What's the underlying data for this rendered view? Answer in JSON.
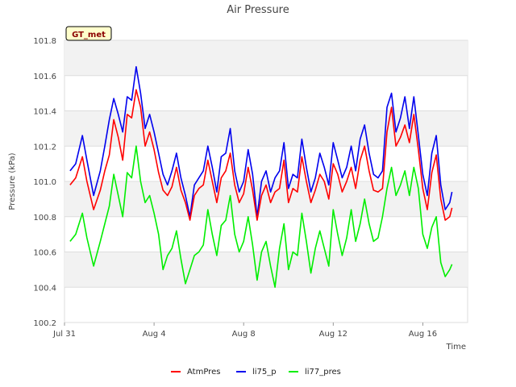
{
  "chart_data": {
    "type": "line",
    "title": "Air Pressure",
    "xlabel": "Time",
    "ylabel": "Pressure (kPa)",
    "badge": "GT_met",
    "x_tick_labels": [
      "Jul 31",
      "Aug 4",
      "Aug 8",
      "Aug 12",
      "Aug 16"
    ],
    "x_tick_days": [
      0,
      4,
      8,
      12,
      16
    ],
    "xlim_days": [
      0,
      18
    ],
    "y_ticks": [
      100.2,
      100.4,
      100.6,
      100.8,
      101.0,
      101.2,
      101.4,
      101.6,
      101.8
    ],
    "ylim": [
      100.2,
      101.8
    ],
    "grid": true,
    "legend_position": "bottom-center",
    "series": [
      {
        "name": "AtmPres",
        "color": "#ff0000",
        "x_days": [
          0.25,
          0.5,
          0.8,
          1.0,
          1.3,
          1.6,
          1.8,
          2.0,
          2.2,
          2.4,
          2.6,
          2.8,
          3.0,
          3.2,
          3.4,
          3.6,
          3.8,
          4.0,
          4.2,
          4.4,
          4.6,
          4.8,
          5.0,
          5.2,
          5.4,
          5.6,
          5.8,
          6.0,
          6.2,
          6.4,
          6.6,
          6.8,
          7.0,
          7.2,
          7.4,
          7.6,
          7.8,
          8.0,
          8.2,
          8.4,
          8.6,
          8.8,
          9.0,
          9.2,
          9.4,
          9.6,
          9.8,
          10.0,
          10.2,
          10.4,
          10.6,
          10.8,
          11.0,
          11.2,
          11.4,
          11.6,
          11.8,
          12.0,
          12.2,
          12.4,
          12.6,
          12.8,
          13.0,
          13.2,
          13.4,
          13.6,
          13.8,
          14.0,
          14.2,
          14.4,
          14.6,
          14.8,
          15.0,
          15.2,
          15.4,
          15.6,
          15.8,
          16.0,
          16.2,
          16.4,
          16.6,
          16.8,
          17.0,
          17.2,
          17.3
        ],
        "values": [
          100.98,
          101.02,
          101.14,
          101.0,
          100.84,
          100.95,
          101.06,
          101.15,
          101.35,
          101.25,
          101.12,
          101.38,
          101.36,
          101.52,
          101.42,
          101.2,
          101.28,
          101.18,
          101.05,
          100.95,
          100.92,
          100.97,
          101.08,
          100.95,
          100.88,
          100.78,
          100.92,
          100.96,
          100.98,
          101.12,
          101.0,
          100.88,
          101.02,
          101.06,
          101.16,
          100.98,
          100.88,
          100.93,
          101.08,
          100.95,
          100.78,
          100.92,
          100.98,
          100.88,
          100.94,
          100.96,
          101.12,
          100.88,
          100.96,
          100.94,
          101.14,
          101.0,
          100.88,
          100.95,
          101.04,
          101.0,
          100.9,
          101.1,
          101.04,
          100.94,
          101.0,
          101.08,
          100.96,
          101.12,
          101.2,
          101.06,
          100.95,
          100.94,
          100.96,
          101.28,
          101.42,
          101.2,
          101.25,
          101.32,
          101.22,
          101.38,
          101.18,
          100.96,
          100.84,
          101.05,
          101.15,
          100.9,
          100.78,
          100.8,
          100.85
        ]
      },
      {
        "name": "li75_p",
        "color": "#0000ee",
        "x_days": [
          0.25,
          0.5,
          0.8,
          1.0,
          1.3,
          1.6,
          1.8,
          2.0,
          2.2,
          2.4,
          2.6,
          2.8,
          3.0,
          3.2,
          3.4,
          3.6,
          3.8,
          4.0,
          4.2,
          4.4,
          4.6,
          4.8,
          5.0,
          5.2,
          5.4,
          5.6,
          5.8,
          6.0,
          6.2,
          6.4,
          6.6,
          6.8,
          7.0,
          7.2,
          7.4,
          7.6,
          7.8,
          8.0,
          8.2,
          8.4,
          8.6,
          8.8,
          9.0,
          9.2,
          9.4,
          9.6,
          9.8,
          10.0,
          10.2,
          10.4,
          10.6,
          10.8,
          11.0,
          11.2,
          11.4,
          11.6,
          11.8,
          12.0,
          12.2,
          12.4,
          12.6,
          12.8,
          13.0,
          13.2,
          13.4,
          13.6,
          13.8,
          14.0,
          14.2,
          14.4,
          14.6,
          14.8,
          15.0,
          15.2,
          15.4,
          15.6,
          15.8,
          16.0,
          16.2,
          16.4,
          16.6,
          16.8,
          17.0,
          17.2,
          17.3
        ],
        "values": [
          101.06,
          101.1,
          101.26,
          101.12,
          100.92,
          101.06,
          101.2,
          101.35,
          101.47,
          101.38,
          101.28,
          101.48,
          101.46,
          101.65,
          101.5,
          101.3,
          101.38,
          101.28,
          101.16,
          101.04,
          100.98,
          101.06,
          101.16,
          101.02,
          100.92,
          100.8,
          100.98,
          101.02,
          101.06,
          101.2,
          101.08,
          100.94,
          101.14,
          101.16,
          101.3,
          101.06,
          100.94,
          101.0,
          101.18,
          101.04,
          100.8,
          101.0,
          101.06,
          100.94,
          101.02,
          101.06,
          101.22,
          100.96,
          101.04,
          101.02,
          101.24,
          101.08,
          100.94,
          101.02,
          101.16,
          101.08,
          100.98,
          101.22,
          101.12,
          101.02,
          101.08,
          101.2,
          101.06,
          101.24,
          101.32,
          101.16,
          101.04,
          101.02,
          101.06,
          101.42,
          101.5,
          101.28,
          101.36,
          101.48,
          101.3,
          101.48,
          101.26,
          101.04,
          100.92,
          101.16,
          101.26,
          100.98,
          100.84,
          100.88,
          100.94
        ]
      },
      {
        "name": "li77_pres",
        "color": "#00ee00",
        "x_days": [
          0.25,
          0.5,
          0.8,
          1.0,
          1.3,
          1.6,
          1.8,
          2.0,
          2.2,
          2.4,
          2.6,
          2.8,
          3.0,
          3.2,
          3.4,
          3.6,
          3.8,
          4.0,
          4.2,
          4.4,
          4.6,
          4.8,
          5.0,
          5.2,
          5.4,
          5.6,
          5.8,
          6.0,
          6.2,
          6.4,
          6.6,
          6.8,
          7.0,
          7.2,
          7.4,
          7.6,
          7.8,
          8.0,
          8.2,
          8.4,
          8.6,
          8.8,
          9.0,
          9.2,
          9.4,
          9.6,
          9.8,
          10.0,
          10.2,
          10.4,
          10.6,
          10.8,
          11.0,
          11.2,
          11.4,
          11.6,
          11.8,
          12.0,
          12.2,
          12.4,
          12.6,
          12.8,
          13.0,
          13.2,
          13.4,
          13.6,
          13.8,
          14.0,
          14.2,
          14.4,
          14.6,
          14.8,
          15.0,
          15.2,
          15.4,
          15.6,
          15.8,
          16.0,
          16.2,
          16.4,
          16.6,
          16.8,
          17.0,
          17.2,
          17.3
        ],
        "values": [
          100.66,
          100.7,
          100.82,
          100.68,
          100.52,
          100.66,
          100.76,
          100.86,
          101.04,
          100.92,
          100.8,
          101.05,
          101.02,
          101.2,
          101.0,
          100.88,
          100.92,
          100.82,
          100.7,
          100.5,
          100.58,
          100.62,
          100.72,
          100.56,
          100.42,
          100.5,
          100.58,
          100.6,
          100.64,
          100.84,
          100.7,
          100.58,
          100.75,
          100.78,
          100.92,
          100.7,
          100.6,
          100.66,
          100.8,
          100.64,
          100.44,
          100.6,
          100.66,
          100.52,
          100.4,
          100.62,
          100.76,
          100.5,
          100.6,
          100.58,
          100.82,
          100.66,
          100.48,
          100.62,
          100.72,
          100.62,
          100.52,
          100.84,
          100.7,
          100.58,
          100.68,
          100.84,
          100.66,
          100.76,
          100.9,
          100.76,
          100.66,
          100.68,
          100.8,
          100.96,
          101.08,
          100.92,
          100.98,
          101.06,
          100.92,
          101.08,
          100.96,
          100.7,
          100.62,
          100.74,
          100.8,
          100.54,
          100.46,
          100.5,
          100.53
        ]
      }
    ]
  }
}
